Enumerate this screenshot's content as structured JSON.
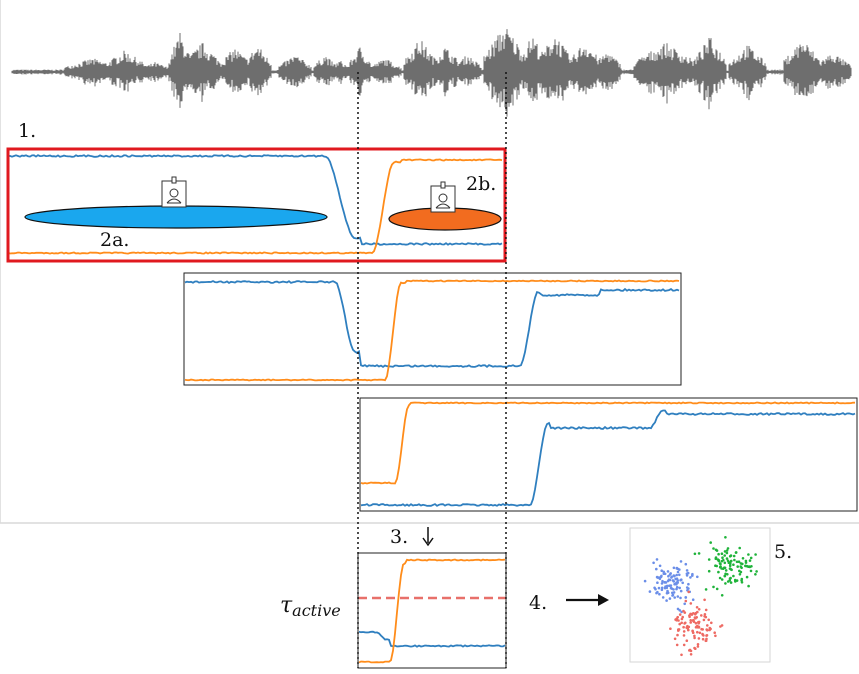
{
  "labels": {
    "step1": "1.",
    "step2a": "2a.",
    "step2b": "2b.",
    "step3": "3.",
    "step4": "4.",
    "step5": "5.",
    "tau_symbol": "τ",
    "tau_subscript": "active"
  },
  "colors": {
    "waveform": "#6e6e6e",
    "speaker_a": "#2f7fbf",
    "speaker_b": "#ff8c1a",
    "ellipse_a": "#1aa7ee",
    "ellipse_b": "#f26c1f",
    "highlight_box": "#e0191f",
    "threshold": "#e8706a",
    "cluster_blue": "#6b8ee8",
    "cluster_green": "#1fb33a",
    "cluster_red": "#ee6a63"
  },
  "icons": {
    "speaker_a": "speaker-id-badge-icon",
    "speaker_b": "speaker-id-badge-icon",
    "arrow_down": "arrow-down-icon",
    "arrow_right": "arrow-right-icon"
  }
}
